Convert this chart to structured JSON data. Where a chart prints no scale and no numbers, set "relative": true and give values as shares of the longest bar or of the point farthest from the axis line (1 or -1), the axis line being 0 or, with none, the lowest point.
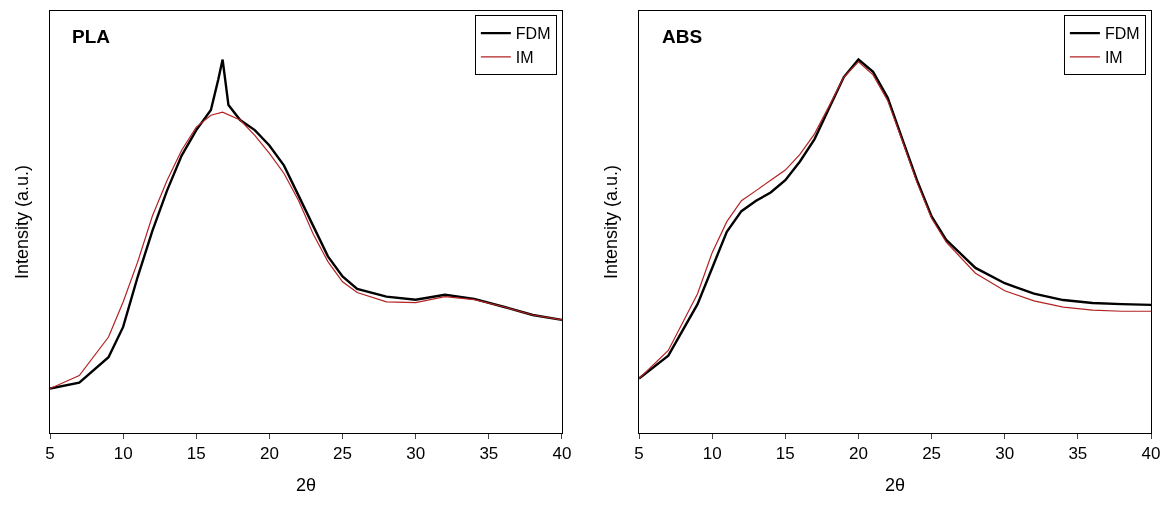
{
  "chart_data": [
    {
      "type": "line",
      "title": "PLA",
      "xlabel": "2θ",
      "ylabel": "Intensity (a.u.)",
      "relative": true,
      "xlim": [
        5,
        40
      ],
      "xticks": [
        5,
        10,
        15,
        20,
        25,
        30,
        35,
        40
      ],
      "legend": "top right",
      "tick_labels": "x",
      "series": [
        {
          "name": "FDM",
          "color": "#000000",
          "x": [
            5,
            7,
            9,
            10,
            11,
            12,
            13,
            14,
            15,
            16,
            16.5,
            16.8,
            17.2,
            18,
            19,
            20,
            21,
            22,
            23,
            24,
            25,
            26,
            28,
            30,
            32,
            34,
            36,
            38,
            40
          ],
          "values": [
            0.119,
            0.135,
            0.203,
            0.284,
            0.419,
            0.541,
            0.649,
            0.743,
            0.811,
            0.865,
            0.946,
            1.0,
            0.878,
            0.838,
            0.811,
            0.77,
            0.716,
            0.635,
            0.554,
            0.473,
            0.419,
            0.386,
            0.365,
            0.357,
            0.37,
            0.359,
            0.338,
            0.316,
            0.303
          ]
        },
        {
          "name": "IM",
          "color": "#b22222",
          "x": [
            5,
            7,
            9,
            10,
            11,
            12,
            13,
            14,
            15,
            16,
            16.8,
            18,
            19,
            20,
            21,
            22,
            23,
            24,
            25,
            26,
            28,
            30,
            32,
            34,
            36,
            38,
            40
          ],
          "values": [
            0.119,
            0.154,
            0.257,
            0.351,
            0.459,
            0.581,
            0.676,
            0.757,
            0.819,
            0.851,
            0.859,
            0.838,
            0.797,
            0.749,
            0.695,
            0.622,
            0.532,
            0.459,
            0.405,
            0.376,
            0.351,
            0.349,
            0.365,
            0.357,
            0.338,
            0.316,
            0.303
          ]
        }
      ]
    },
    {
      "type": "line",
      "title": "ABS",
      "xlabel": "2θ",
      "ylabel": "Intensity (a.u.)",
      "relative": true,
      "xlim": [
        5,
        40
      ],
      "xticks": [
        5,
        10,
        15,
        20,
        25,
        30,
        35,
        40
      ],
      "legend": "top right",
      "tick_labels": "x",
      "series": [
        {
          "name": "FDM",
          "color": "#000000",
          "x": [
            5,
            7,
            9,
            10,
            11,
            12,
            13,
            14,
            15,
            16,
            17,
            18,
            19,
            20,
            21,
            22,
            23,
            24,
            25,
            26,
            28,
            30,
            32,
            34,
            36,
            38,
            40
          ],
          "values": [
            0.146,
            0.207,
            0.345,
            0.442,
            0.539,
            0.594,
            0.622,
            0.644,
            0.677,
            0.727,
            0.787,
            0.87,
            0.953,
            1.0,
            0.967,
            0.898,
            0.787,
            0.677,
            0.58,
            0.517,
            0.442,
            0.401,
            0.373,
            0.356,
            0.348,
            0.345,
            0.343
          ]
        },
        {
          "name": "IM",
          "color": "#b22222",
          "x": [
            5,
            7,
            9,
            10,
            11,
            12,
            13,
            14,
            15,
            16,
            17,
            18,
            19,
            20,
            21,
            22,
            23,
            24,
            25,
            26,
            28,
            30,
            32,
            34,
            36,
            38,
            40
          ],
          "values": [
            0.146,
            0.221,
            0.373,
            0.483,
            0.566,
            0.622,
            0.649,
            0.677,
            0.704,
            0.746,
            0.801,
            0.876,
            0.953,
            0.994,
            0.959,
            0.89,
            0.782,
            0.671,
            0.575,
            0.511,
            0.428,
            0.381,
            0.354,
            0.337,
            0.329,
            0.326,
            0.326
          ]
        }
      ]
    }
  ]
}
